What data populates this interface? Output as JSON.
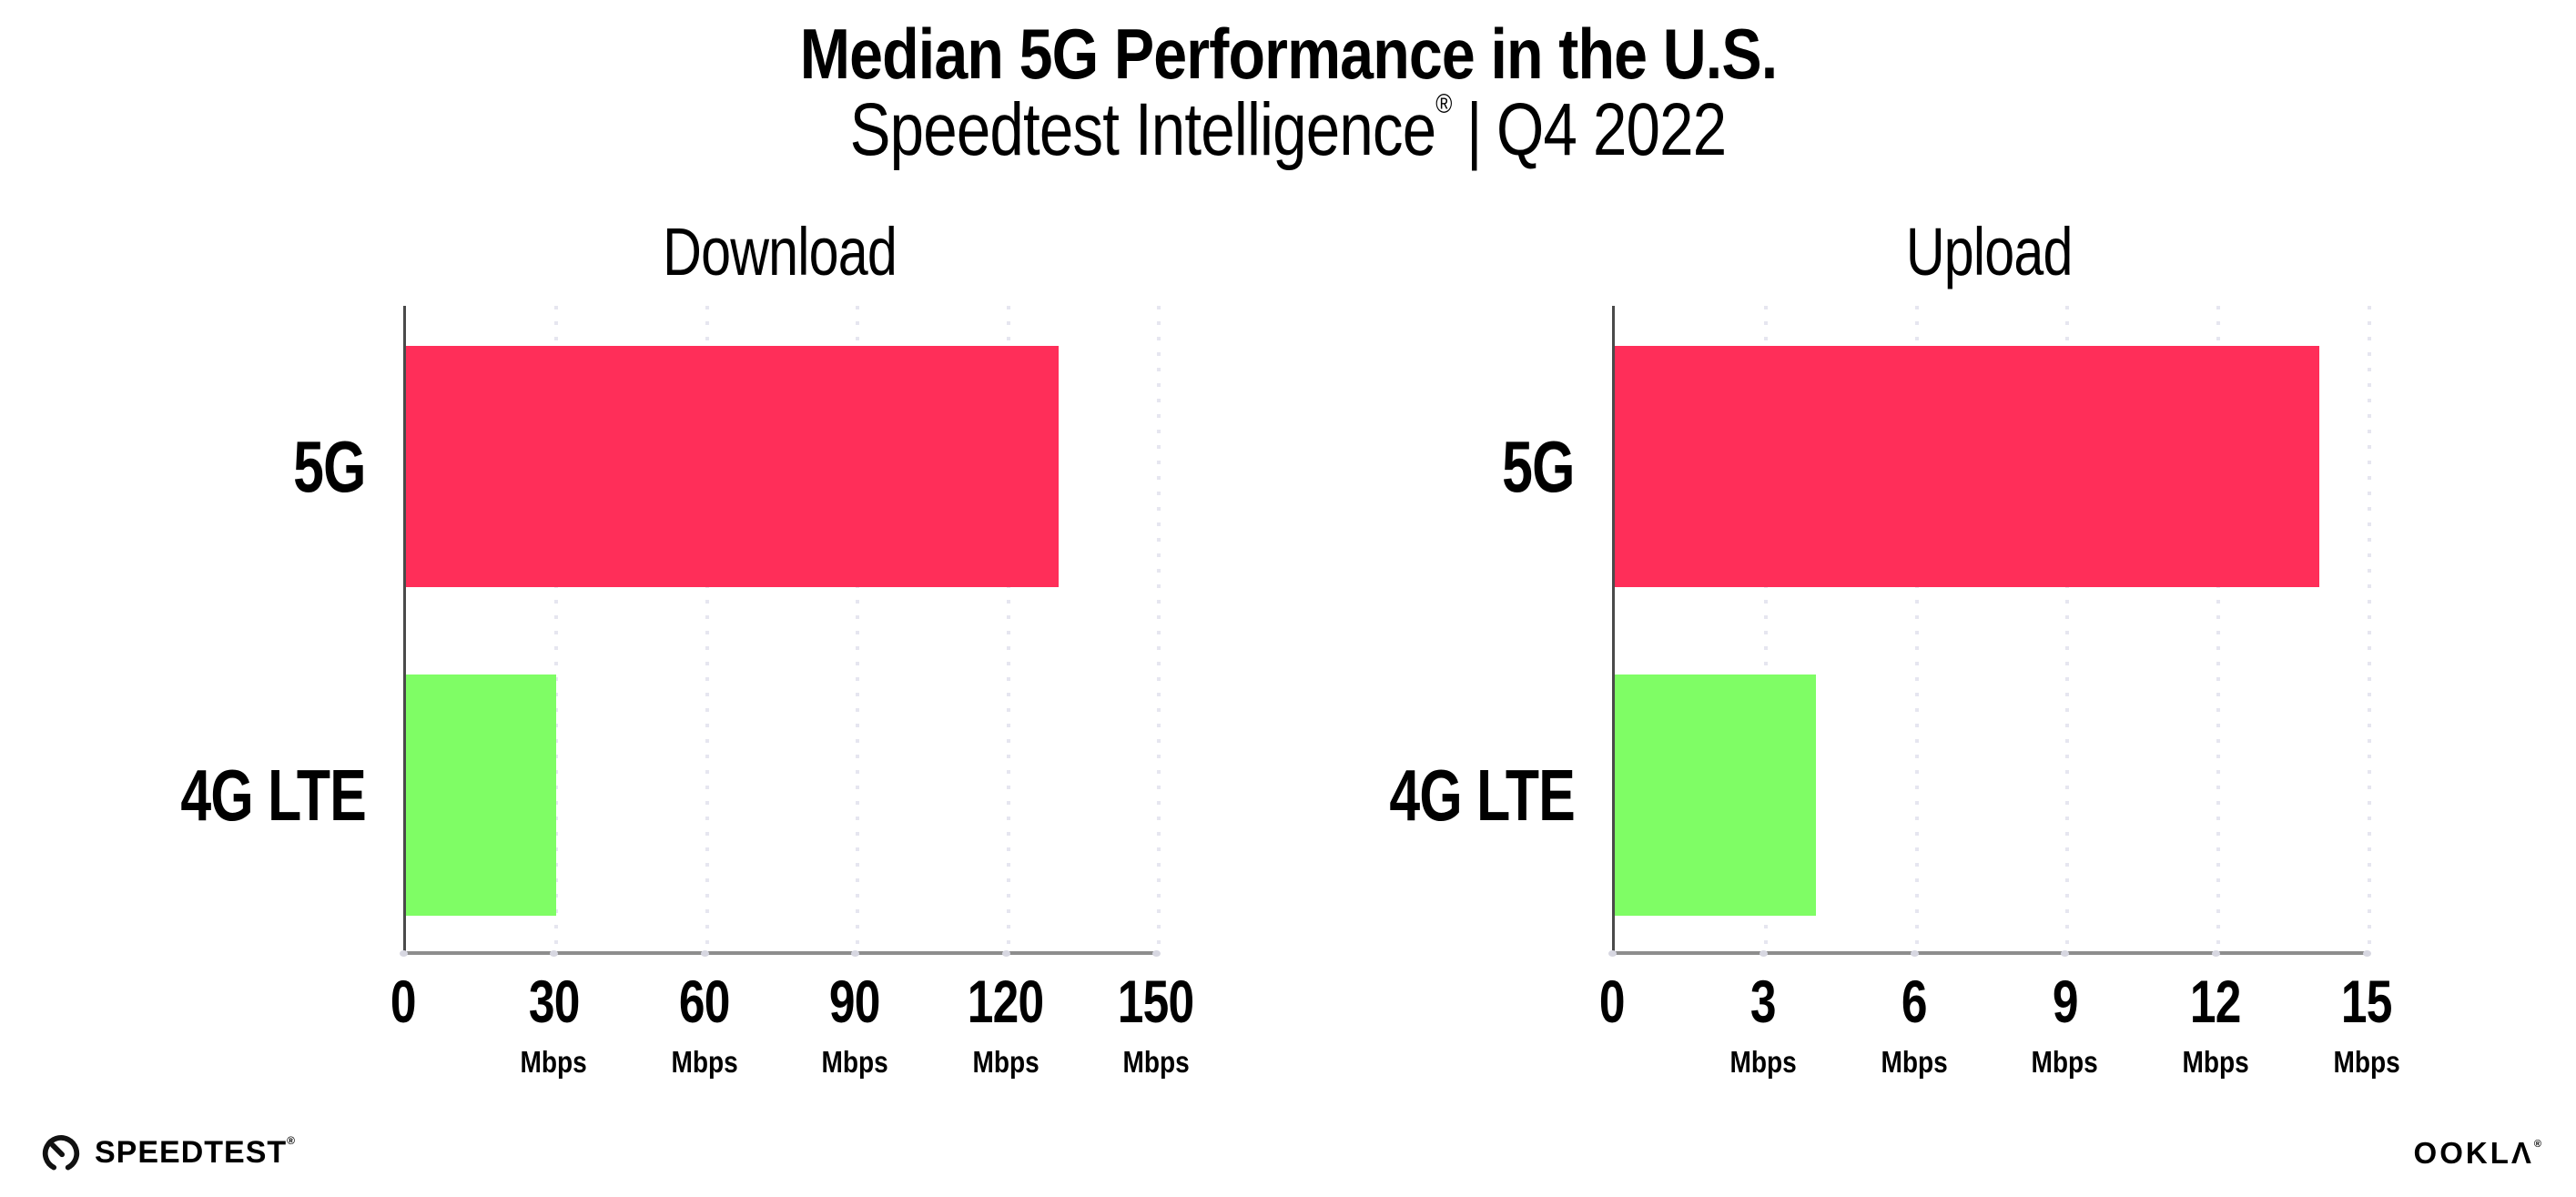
{
  "header": {
    "title": "Median 5G Performance in the U.S.",
    "subtitle_brand": "Speedtest Intelligence",
    "subtitle_registered": "®",
    "subtitle_separator": "|",
    "subtitle_period": "Q4 2022"
  },
  "footer": {
    "speedtest_label": "SPEEDTEST",
    "speedtest_mark": "®",
    "ookla_label_main": "OOKL",
    "ookla_label_last": "Λ",
    "ookla_mark": "®"
  },
  "colors": {
    "bar_5g": "#ff2e59",
    "bar_4g_lte": "#7ffd65",
    "axis_left_spine": "#4a4a4a",
    "axis_bottom_spine": "#8d8d8d",
    "gridline": "#e6e6f0",
    "text": "#000000"
  },
  "icons": {
    "speedtest_gauge": "speedtest-gauge-icon"
  },
  "chart_data": [
    {
      "type": "bar",
      "orientation": "horizontal",
      "title": "Download",
      "categories": [
        "5G",
        "4G LTE"
      ],
      "values": [
        130,
        30
      ],
      "unit": "Mbps",
      "xlim": [
        0,
        150
      ],
      "xticks": [
        0,
        30,
        60,
        90,
        120,
        150
      ],
      "xtick_units": [
        "",
        "Mbps",
        "Mbps",
        "Mbps",
        "Mbps",
        "Mbps"
      ],
      "bar_colors": [
        "#ff2e59",
        "#7ffd65"
      ],
      "grid": "dotted-vertical",
      "legend": "none"
    },
    {
      "type": "bar",
      "orientation": "horizontal",
      "title": "Upload",
      "categories": [
        "5G",
        "4G LTE"
      ],
      "values": [
        14,
        4
      ],
      "unit": "Mbps",
      "xlim": [
        0,
        15
      ],
      "xticks": [
        0,
        3,
        6,
        9,
        12,
        15
      ],
      "xtick_units": [
        "",
        "Mbps",
        "Mbps",
        "Mbps",
        "Mbps",
        "Mbps"
      ],
      "bar_colors": [
        "#ff2e59",
        "#7ffd65"
      ],
      "grid": "dotted-vertical",
      "legend": "none"
    }
  ]
}
